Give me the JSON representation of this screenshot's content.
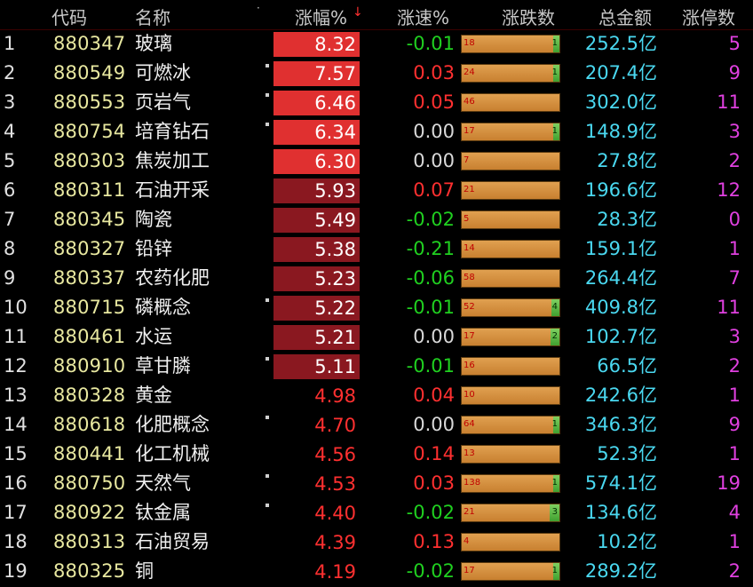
{
  "header": {
    "code": "代码",
    "name": "名称",
    "name_marker": "·",
    "pct": "涨幅%",
    "sort_arrow": "↓",
    "speed": "涨速%",
    "updown": "涨跌数",
    "amount": "总金额",
    "limit": "涨停数"
  },
  "colors": {
    "up": "#ff3030",
    "down": "#20d020",
    "flat": "#d8d8d8",
    "bar_bright": "#e03030",
    "bar_dark": "#8a1820",
    "amount": "#4ad8f0",
    "limit": "#e040e0"
  },
  "rows": [
    {
      "idx": "1",
      "code": "880347",
      "name": "玻璃",
      "dot": false,
      "pct": "8.32",
      "pct_bg": "bright",
      "speed": "-0.01",
      "speed_dir": "down",
      "up": "18",
      "down": "1",
      "down_frac": 0.05,
      "amount": "252.5亿",
      "limit": "5"
    },
    {
      "idx": "2",
      "code": "880549",
      "name": "可燃冰",
      "dot": true,
      "pct": "7.57",
      "pct_bg": "bright",
      "speed": "0.03",
      "speed_dir": "up",
      "up": "24",
      "down": "1",
      "down_frac": 0.04,
      "amount": "207.4亿",
      "limit": "9"
    },
    {
      "idx": "3",
      "code": "880553",
      "name": "页岩气",
      "dot": true,
      "pct": "6.46",
      "pct_bg": "bright",
      "speed": "0.05",
      "speed_dir": "up",
      "up": "46",
      "down": "",
      "down_frac": 0,
      "amount": "302.0亿",
      "limit": "11"
    },
    {
      "idx": "4",
      "code": "880754",
      "name": "培育钻石",
      "dot": true,
      "pct": "6.34",
      "pct_bg": "bright",
      "speed": "0.00",
      "speed_dir": "flat",
      "up": "17",
      "down": "1",
      "down_frac": 0.06,
      "amount": "148.9亿",
      "limit": "3"
    },
    {
      "idx": "5",
      "code": "880303",
      "name": "焦炭加工",
      "dot": false,
      "pct": "6.30",
      "pct_bg": "bright",
      "speed": "0.00",
      "speed_dir": "flat",
      "up": "7",
      "down": "",
      "down_frac": 0,
      "amount": "27.8亿",
      "limit": "2"
    },
    {
      "idx": "6",
      "code": "880311",
      "name": "石油开采",
      "dot": false,
      "pct": "5.93",
      "pct_bg": "dark",
      "speed": "0.07",
      "speed_dir": "up",
      "up": "21",
      "down": "",
      "down_frac": 0,
      "amount": "196.6亿",
      "limit": "12"
    },
    {
      "idx": "7",
      "code": "880345",
      "name": "陶瓷",
      "dot": false,
      "pct": "5.49",
      "pct_bg": "dark",
      "speed": "-0.02",
      "speed_dir": "down",
      "up": "5",
      "down": "",
      "down_frac": 0,
      "amount": "28.3亿",
      "limit": "0"
    },
    {
      "idx": "8",
      "code": "880327",
      "name": "铅锌",
      "dot": false,
      "pct": "5.38",
      "pct_bg": "dark",
      "speed": "-0.21",
      "speed_dir": "down",
      "up": "14",
      "down": "",
      "down_frac": 0,
      "amount": "159.1亿",
      "limit": "1"
    },
    {
      "idx": "9",
      "code": "880337",
      "name": "农药化肥",
      "dot": false,
      "pct": "5.23",
      "pct_bg": "dark",
      "speed": "-0.06",
      "speed_dir": "down",
      "up": "58",
      "down": "",
      "down_frac": 0,
      "amount": "264.4亿",
      "limit": "7"
    },
    {
      "idx": "10",
      "code": "880715",
      "name": "磷概念",
      "dot": true,
      "pct": "5.22",
      "pct_bg": "dark",
      "speed": "-0.01",
      "speed_dir": "down",
      "up": "52",
      "down": "4",
      "down_frac": 0.08,
      "amount": "409.8亿",
      "limit": "11"
    },
    {
      "idx": "11",
      "code": "880461",
      "name": "水运",
      "dot": false,
      "pct": "5.21",
      "pct_bg": "dark",
      "speed": "0.00",
      "speed_dir": "flat",
      "up": "17",
      "down": "2",
      "down_frac": 0.09,
      "amount": "102.7亿",
      "limit": "3"
    },
    {
      "idx": "12",
      "code": "880910",
      "name": "草甘膦",
      "dot": true,
      "pct": "5.11",
      "pct_bg": "dark",
      "speed": "-0.01",
      "speed_dir": "down",
      "up": "16",
      "down": "",
      "down_frac": 0,
      "amount": "66.5亿",
      "limit": "2"
    },
    {
      "idx": "13",
      "code": "880328",
      "name": "黄金",
      "dot": false,
      "pct": "4.98",
      "pct_bg": "none",
      "speed": "0.04",
      "speed_dir": "up",
      "up": "10",
      "down": "",
      "down_frac": 0,
      "amount": "242.6亿",
      "limit": "1"
    },
    {
      "idx": "14",
      "code": "880618",
      "name": "化肥概念",
      "dot": true,
      "pct": "4.70",
      "pct_bg": "none",
      "speed": "0.00",
      "speed_dir": "flat",
      "up": "64",
      "down": "1",
      "down_frac": 0.03,
      "amount": "346.3亿",
      "limit": "9"
    },
    {
      "idx": "15",
      "code": "880441",
      "name": "化工机械",
      "dot": false,
      "pct": "4.56",
      "pct_bg": "none",
      "speed": "0.14",
      "speed_dir": "up",
      "up": "13",
      "down": "",
      "down_frac": 0,
      "amount": "52.3亿",
      "limit": "1"
    },
    {
      "idx": "16",
      "code": "880750",
      "name": "天然气",
      "dot": true,
      "pct": "4.53",
      "pct_bg": "none",
      "speed": "0.03",
      "speed_dir": "up",
      "up": "138",
      "down": "1",
      "down_frac": 0.02,
      "amount": "574.1亿",
      "limit": "19"
    },
    {
      "idx": "17",
      "code": "880922",
      "name": "钛金属",
      "dot": true,
      "pct": "4.40",
      "pct_bg": "none",
      "speed": "-0.02",
      "speed_dir": "down",
      "up": "21",
      "down": "3",
      "down_frac": 0.1,
      "amount": "134.6亿",
      "limit": "4"
    },
    {
      "idx": "18",
      "code": "880313",
      "name": "石油贸易",
      "dot": false,
      "pct": "4.39",
      "pct_bg": "none",
      "speed": "0.13",
      "speed_dir": "up",
      "up": "4",
      "down": "",
      "down_frac": 0,
      "amount": "10.2亿",
      "limit": "1"
    },
    {
      "idx": "19",
      "code": "880325",
      "name": "铜",
      "dot": false,
      "pct": "4.19",
      "pct_bg": "none",
      "speed": "-0.02",
      "speed_dir": "down",
      "up": "17",
      "down": "1",
      "down_frac": 0.06,
      "amount": "289.2亿",
      "limit": "2"
    }
  ]
}
